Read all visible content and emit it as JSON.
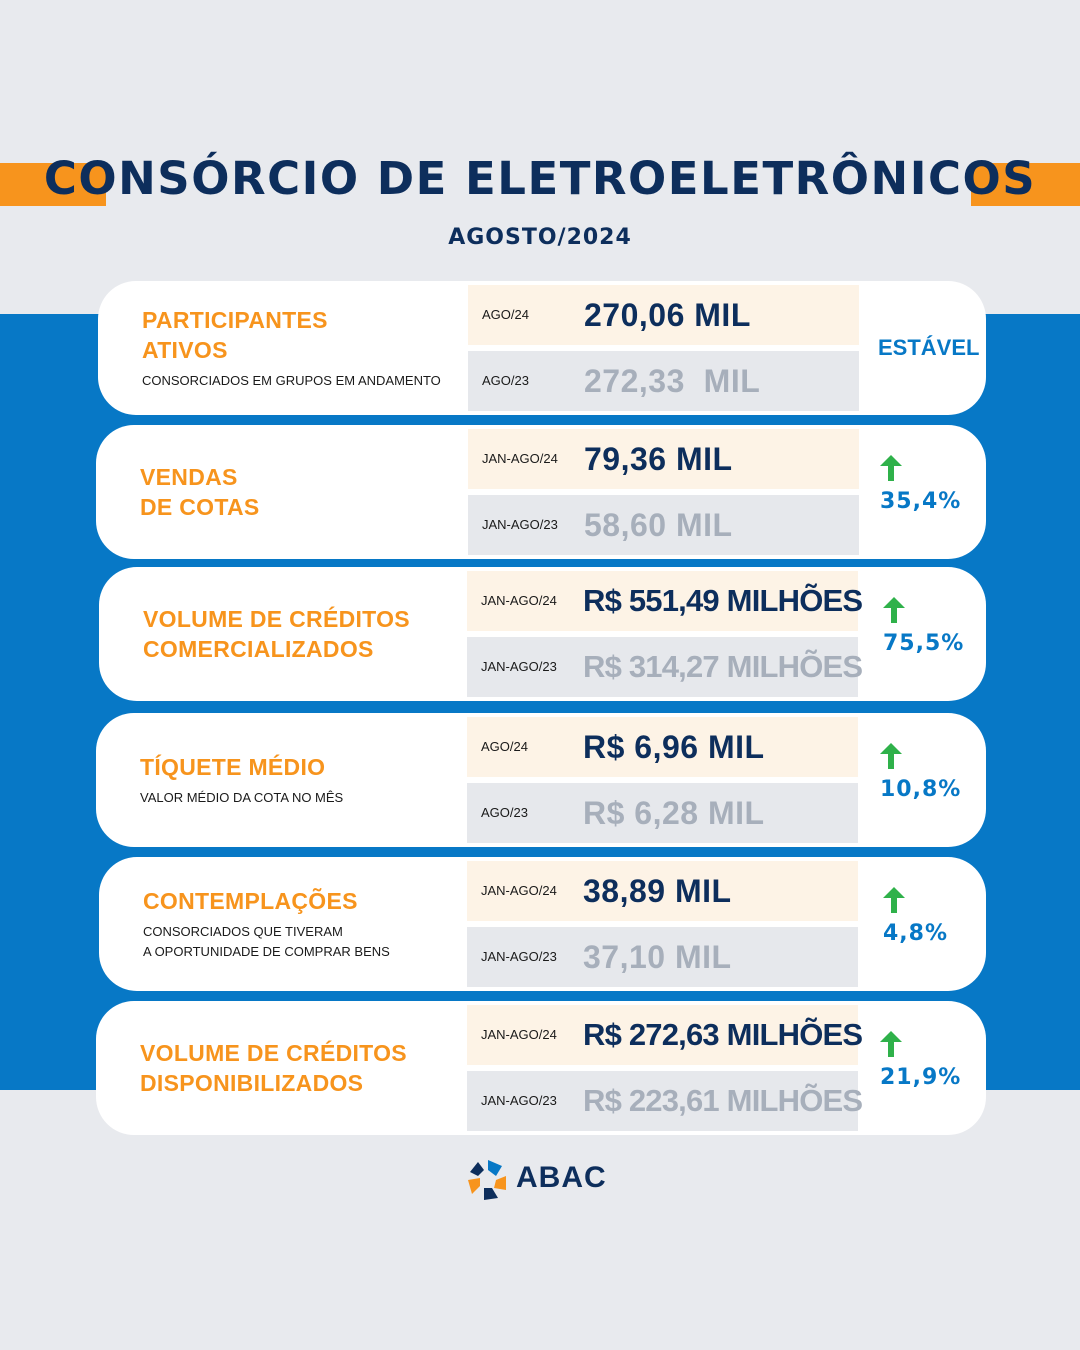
{
  "header": {
    "title": "CONSÓRCIO DE ELETROELETRÔNICOS",
    "subtitle": "AGOSTO/2024"
  },
  "colors": {
    "navy": "#0d2e5c",
    "orange": "#f7941d",
    "blue": "#0778c6",
    "green_arrow": "#2fb14a",
    "gray_value": "#a7afbb"
  },
  "cards": [
    {
      "title": "PARTICIPANTES\nATIVOS",
      "subtitle": "CONSORCIADOS EM GRUPOS EM ANDAMENTO",
      "current_period": "AGO/24",
      "current_value": "270,06 MIL",
      "previous_period": "AGO/23",
      "previous_value": "272,33  MIL",
      "trend": "ESTÁVEL"
    },
    {
      "title": "VENDAS\nDE COTAS",
      "current_period": "JAN-AGO/24",
      "current_value": "79,36 MIL",
      "previous_period": "JAN-AGO/23",
      "previous_value": "58,60 MIL",
      "trend_icon": "arrow-up-icon",
      "trend": "35,4%"
    },
    {
      "title": "VOLUME DE CRÉDITOS\nCOMERCIALIZADOS",
      "current_period": "JAN-AGO/24",
      "current_value": "R$ 551,49 MILHÕES",
      "previous_period": "JAN-AGO/23",
      "previous_value": "R$ 314,27 MILHÕES",
      "trend_icon": "arrow-up-icon",
      "trend": "75,5%"
    },
    {
      "title": "TÍQUETE MÉDIO",
      "subtitle": "VALOR MÉDIO DA COTA NO MÊS",
      "current_period": "AGO/24",
      "current_value": "R$ 6,96 MIL",
      "previous_period": "AGO/23",
      "previous_value": "R$ 6,28 MIL",
      "trend_icon": "arrow-up-icon",
      "trend": "10,8%"
    },
    {
      "title": "CONTEMPLAÇÕES",
      "subtitle": "CONSORCIADOS QUE TIVERAM\nA OPORTUNIDADE DE COMPRAR BENS",
      "current_period": "JAN-AGO/24",
      "current_value": "38,89 MIL",
      "previous_period": "JAN-AGO/23",
      "previous_value": "37,10 MIL",
      "trend_icon": "arrow-up-icon",
      "trend": "4,8%"
    },
    {
      "title": "VOLUME DE CRÉDITOS\nDISPONIBILIZADOS",
      "current_period": "JAN-AGO/24",
      "current_value": "R$ 272,63 MILHÕES",
      "previous_period": "JAN-AGO/23",
      "previous_value": "R$ 223,61 MILHÕES",
      "trend_icon": "arrow-up-icon",
      "trend": "21,9%"
    }
  ],
  "footer": {
    "logo_text": "ABAC"
  }
}
